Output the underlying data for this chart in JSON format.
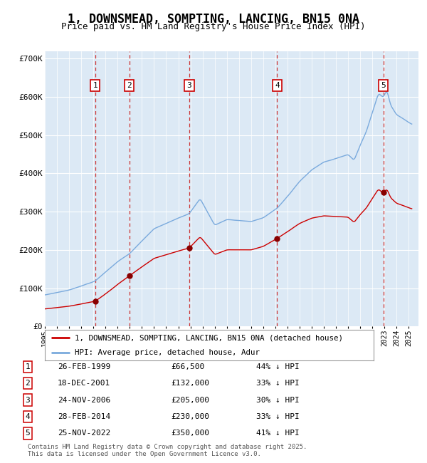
{
  "title": "1, DOWNSMEAD, SOMPTING, LANCING, BN15 0NA",
  "subtitle": "Price paid vs. HM Land Registry's House Price Index (HPI)",
  "title_fontsize": 12,
  "subtitle_fontsize": 9,
  "ylim": [
    0,
    720000
  ],
  "yticks": [
    0,
    100000,
    200000,
    300000,
    400000,
    500000,
    600000,
    700000
  ],
  "ytick_labels": [
    "£0",
    "£100K",
    "£200K",
    "£300K",
    "£400K",
    "£500K",
    "£600K",
    "£700K"
  ],
  "xlim_start": 1995.0,
  "xlim_end": 2025.8,
  "background_color": "#ffffff",
  "plot_bg_color": "#dce9f5",
  "grid_color": "#ffffff",
  "hpi_line_color": "#7aaadd",
  "price_line_color": "#cc0000",
  "sale_marker_color": "#880000",
  "dashed_line_color": "#cc3333",
  "legend_line1": "1, DOWNSMEAD, SOMPTING, LANCING, BN15 0NA (detached house)",
  "legend_line2": "HPI: Average price, detached house, Adur",
  "footer_text": "Contains HM Land Registry data © Crown copyright and database right 2025.\nThis data is licensed under the Open Government Licence v3.0.",
  "sales": [
    {
      "num": 1,
      "date": "26-FEB-1999",
      "year": 1999.15,
      "price": 66500,
      "label": "1"
    },
    {
      "num": 2,
      "date": "18-DEC-2001",
      "year": 2001.96,
      "price": 132000,
      "label": "2"
    },
    {
      "num": 3,
      "date": "24-NOV-2006",
      "year": 2006.9,
      "price": 205000,
      "label": "3"
    },
    {
      "num": 4,
      "date": "28-FEB-2014",
      "year": 2014.15,
      "price": 230000,
      "label": "4"
    },
    {
      "num": 5,
      "date": "25-NOV-2022",
      "year": 2022.9,
      "price": 350000,
      "label": "5"
    }
  ],
  "table_rows": [
    [
      "1",
      "26-FEB-1999",
      "£66,500",
      "44% ↓ HPI"
    ],
    [
      "2",
      "18-DEC-2001",
      "£132,000",
      "33% ↓ HPI"
    ],
    [
      "3",
      "24-NOV-2006",
      "£205,000",
      "30% ↓ HPI"
    ],
    [
      "4",
      "28-FEB-2014",
      "£230,000",
      "33% ↓ HPI"
    ],
    [
      "5",
      "25-NOV-2022",
      "£350,000",
      "41% ↓ HPI"
    ]
  ]
}
